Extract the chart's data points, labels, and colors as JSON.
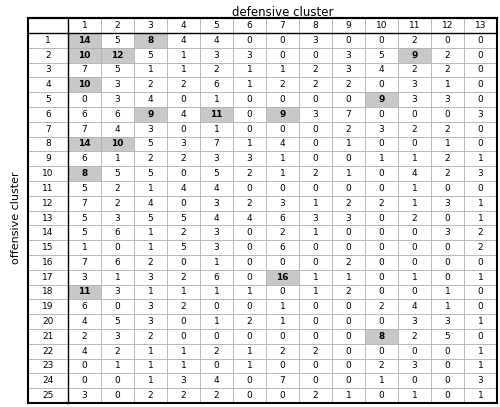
{
  "title_defensive": "defensive cluster",
  "label_offensive": "offensive cluster",
  "defensive_cols": [
    "1",
    "2",
    "3",
    "4",
    "5",
    "6",
    "7",
    "8",
    "9",
    "10",
    "11",
    "12",
    "13"
  ],
  "offensive_rows": [
    "1",
    "2",
    "3",
    "4",
    "5",
    "6",
    "7",
    "8",
    "9",
    "10",
    "11",
    "12",
    "13",
    "14",
    "15",
    "16",
    "17",
    "18",
    "19",
    "20",
    "21",
    "22",
    "23",
    "24",
    "25"
  ],
  "data": [
    [
      14,
      5,
      8,
      4,
      4,
      0,
      0,
      3,
      0,
      0,
      2,
      0,
      0
    ],
    [
      10,
      12,
      5,
      1,
      3,
      3,
      0,
      0,
      3,
      5,
      9,
      2,
      0
    ],
    [
      7,
      5,
      1,
      1,
      2,
      1,
      1,
      2,
      3,
      4,
      2,
      2,
      0
    ],
    [
      10,
      3,
      2,
      2,
      6,
      1,
      2,
      2,
      2,
      0,
      3,
      1,
      0
    ],
    [
      0,
      3,
      4,
      0,
      1,
      0,
      0,
      0,
      0,
      9,
      3,
      3,
      0
    ],
    [
      6,
      6,
      9,
      4,
      11,
      0,
      9,
      3,
      7,
      0,
      0,
      0,
      3
    ],
    [
      7,
      4,
      3,
      0,
      1,
      0,
      0,
      0,
      2,
      3,
      2,
      2,
      0
    ],
    [
      14,
      10,
      5,
      3,
      7,
      1,
      4,
      0,
      1,
      0,
      0,
      1,
      0
    ],
    [
      6,
      1,
      2,
      2,
      3,
      3,
      1,
      0,
      0,
      1,
      1,
      2,
      1
    ],
    [
      8,
      5,
      5,
      0,
      5,
      2,
      1,
      2,
      1,
      0,
      4,
      2,
      3
    ],
    [
      5,
      2,
      1,
      4,
      4,
      0,
      0,
      0,
      0,
      0,
      1,
      0,
      0
    ],
    [
      7,
      2,
      4,
      0,
      3,
      2,
      3,
      1,
      2,
      2,
      1,
      3,
      1
    ],
    [
      5,
      3,
      5,
      5,
      4,
      4,
      6,
      3,
      3,
      0,
      2,
      0,
      1
    ],
    [
      5,
      6,
      1,
      2,
      3,
      0,
      2,
      1,
      0,
      0,
      0,
      3,
      2
    ],
    [
      1,
      0,
      1,
      5,
      3,
      0,
      6,
      0,
      0,
      0,
      0,
      0,
      2
    ],
    [
      7,
      6,
      2,
      0,
      1,
      0,
      0,
      0,
      2,
      0,
      0,
      0,
      0
    ],
    [
      3,
      1,
      3,
      2,
      6,
      0,
      16,
      1,
      1,
      0,
      1,
      0,
      1
    ],
    [
      11,
      3,
      1,
      1,
      1,
      1,
      0,
      1,
      2,
      0,
      0,
      1,
      0
    ],
    [
      6,
      0,
      3,
      2,
      0,
      0,
      1,
      0,
      0,
      2,
      4,
      1,
      0
    ],
    [
      4,
      5,
      3,
      0,
      1,
      2,
      1,
      0,
      0,
      0,
      3,
      3,
      1
    ],
    [
      2,
      3,
      2,
      0,
      0,
      0,
      0,
      0,
      0,
      8,
      2,
      5,
      0
    ],
    [
      4,
      2,
      1,
      1,
      2,
      1,
      2,
      2,
      0,
      0,
      0,
      0,
      1
    ],
    [
      0,
      1,
      1,
      1,
      0,
      1,
      0,
      0,
      0,
      2,
      3,
      0,
      1
    ],
    [
      0,
      0,
      1,
      3,
      4,
      0,
      7,
      0,
      0,
      1,
      0,
      0,
      3
    ],
    [
      3,
      0,
      2,
      2,
      2,
      0,
      0,
      2,
      1,
      0,
      1,
      0,
      1
    ]
  ],
  "threshold": 8,
  "shade_color": "#c8c8c8",
  "grid_color": "#aaaaaa",
  "bg_color": "#ffffff"
}
